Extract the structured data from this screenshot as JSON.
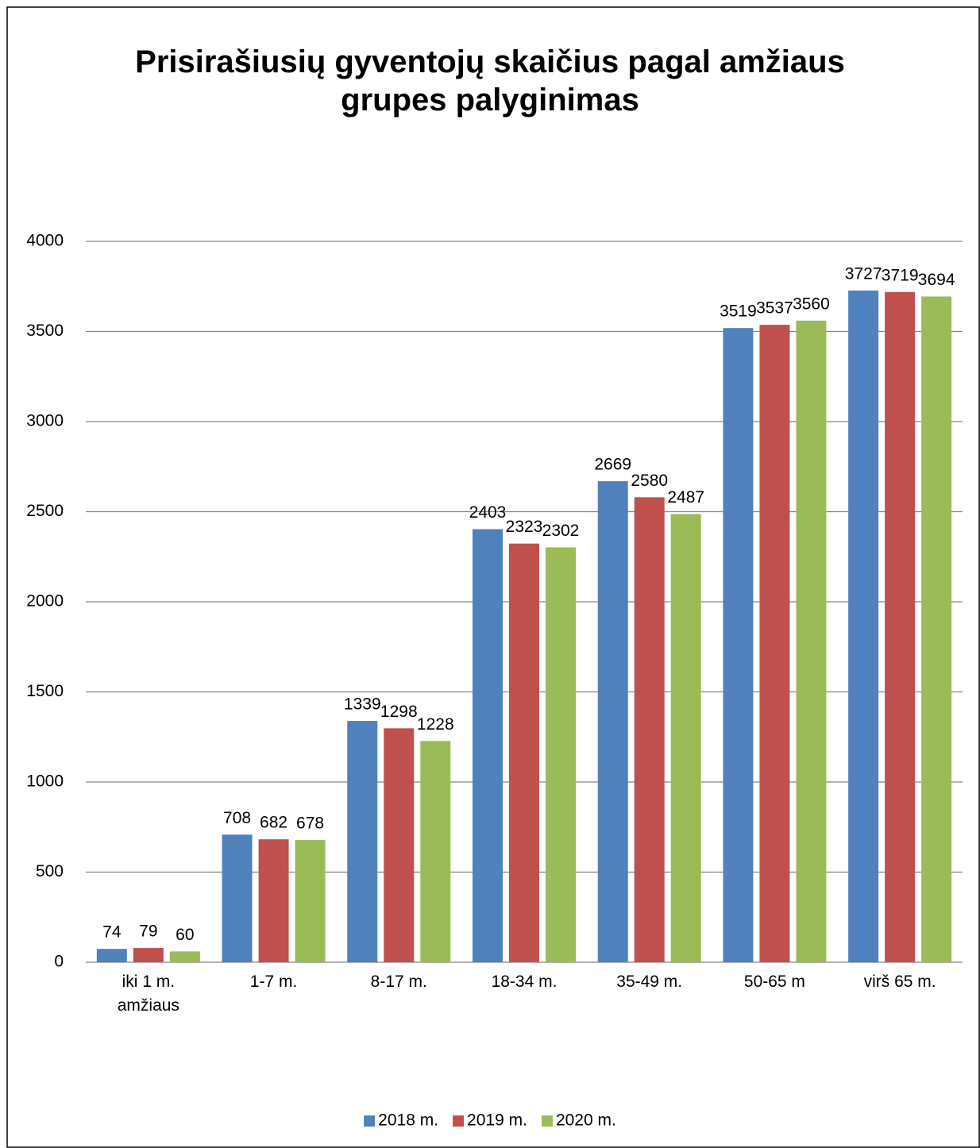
{
  "chart_data": {
    "type": "bar",
    "title": "Prisirašiusių gyventojų skaičius pagal amžiaus grupes palyginimas",
    "categories": [
      "iki 1 m. amžiaus",
      "1-7 m.",
      "8-17 m.",
      "18-34 m.",
      "35-49 m.",
      "50-65 m",
      "virš 65 m."
    ],
    "series": [
      {
        "name": "2018 m.",
        "color": "#4f81bd",
        "values": [
          74,
          708,
          1339,
          2403,
          2669,
          3519,
          3727
        ]
      },
      {
        "name": "2019 m.",
        "color": "#c0504d",
        "values": [
          79,
          682,
          1298,
          2323,
          2580,
          3537,
          3719
        ]
      },
      {
        "name": "2020 m.",
        "color": "#9bbb59",
        "values": [
          60,
          678,
          1228,
          2302,
          2487,
          3560,
          3694
        ]
      }
    ],
    "ylim": [
      0,
      4000
    ],
    "yticks": [
      0,
      500,
      1000,
      1500,
      2000,
      2500,
      3000,
      3500,
      4000
    ],
    "grid": true,
    "legend": "bottom"
  }
}
